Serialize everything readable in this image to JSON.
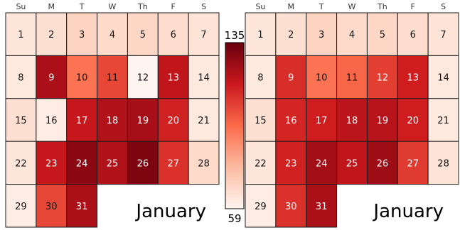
{
  "chart_data": {
    "type": "heatmap",
    "subtype": "calendar",
    "month_label": "January",
    "weekdays": [
      "Su",
      "M",
      "T",
      "W",
      "Th",
      "F",
      "S"
    ],
    "first_weekday_index": 0,
    "days": [
      1,
      2,
      3,
      4,
      5,
      6,
      7,
      8,
      9,
      10,
      11,
      12,
      13,
      14,
      15,
      16,
      17,
      18,
      19,
      20,
      21,
      22,
      23,
      24,
      25,
      26,
      27,
      28,
      29,
      30,
      31
    ],
    "colorbar": {
      "min": 59,
      "max": 135,
      "min_label": "59",
      "max_label": "135",
      "colors": [
        "#fff5f0",
        "#fcbba1",
        "#fb6a4a",
        "#cb181d",
        "#67000d"
      ]
    },
    "panels": [
      {
        "name": "left",
        "values": [
          64,
          66,
          70,
          68,
          69,
          67,
          65,
          63,
          122,
          95,
          105,
          59,
          118,
          63,
          66,
          62,
          117,
          121,
          123,
          114,
          63,
          64,
          117,
          128,
          121,
          131,
          110,
          68,
          62,
          105,
          122
        ]
      },
      {
        "name": "right",
        "values": [
          64,
          66,
          70,
          68,
          69,
          67,
          65,
          63,
          111,
          95,
          98,
          107,
          115,
          63,
          66,
          113,
          115,
          119,
          120,
          115,
          63,
          64,
          114,
          124,
          118,
          125,
          108,
          65,
          62,
          110,
          122
        ]
      }
    ]
  }
}
